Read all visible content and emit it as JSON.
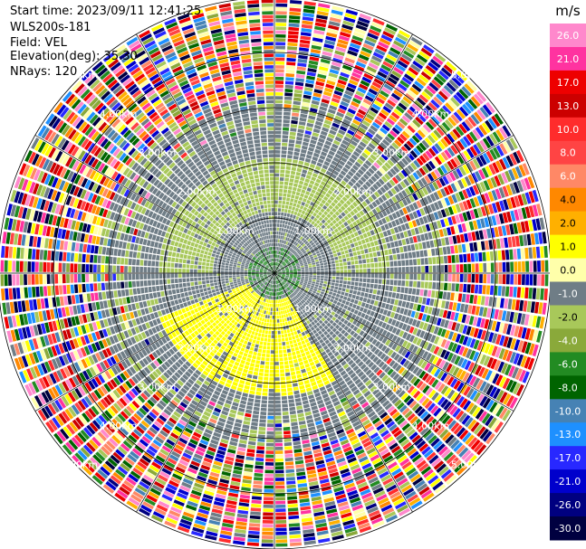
{
  "header": {
    "start_time": "Start time: 2023/09/11 12:41:25",
    "instrument": "WLS200s-181",
    "field": "Field: VEL",
    "elevation": "Elevation(deg): 35.30",
    "nrays": "NRays: 120"
  },
  "chart_data": {
    "type": "heatmap",
    "projection": "polar (PPI)",
    "field": "VEL",
    "n_rays": 120,
    "range_rings_km": [
      1.0,
      2.0,
      3.0,
      4.0,
      5.0
    ],
    "range_ring_labels": [
      "1.00km",
      "2.00km",
      "3.00km",
      "4.00km",
      "5.00km"
    ],
    "spokes_deg": [
      0,
      30,
      60,
      90,
      120,
      150,
      180,
      210,
      240,
      270,
      300,
      330
    ],
    "max_range_km": 5.0,
    "colorbar": {
      "unit": "m/s",
      "ticks": [
        "26.0",
        "21.0",
        "17.0",
        "13.0",
        "10.0",
        "8.0",
        "6.0",
        "4.0",
        "2.0",
        "1.0",
        "0.0",
        "-1.0",
        "-2.0",
        "-4.0",
        "-6.0",
        "-8.0",
        "-10.0",
        "-13.0",
        "-17.0",
        "-21.0",
        "-26.0",
        "-30.0"
      ],
      "colors": [
        "#ff88cc",
        "#ff33a0",
        "#ee0000",
        "#cc0000",
        "#ff2c2c",
        "#ff4444",
        "#ff8866",
        "#ff8800",
        "#ffb000",
        "#ffff00",
        "#ffffaa",
        "#6f7d86",
        "#a8c85a",
        "#8aa93a",
        "#228b22",
        "#006400",
        "#4682b4",
        "#1e90ff",
        "#2828ff",
        "#0000cc",
        "#000080",
        "#000040"
      ]
    },
    "regions": [
      {
        "description": "gray near-zero velocities",
        "range_km": [
          0.0,
          3.2
        ],
        "value": 0.0
      },
      {
        "description": "light-green negative band (north half)",
        "range_km": [
          1.1,
          2.1
        ],
        "azimuth_deg": [
          270,
          90
        ],
        "value": -1.5
      },
      {
        "description": "yellow positive band (south half)",
        "range_km": [
          0.3,
          2.2
        ],
        "azimuth_deg": [
          150,
          250
        ],
        "value": 1.5
      },
      {
        "description": "noisy multi-colour beyond",
        "range_km": [
          3.2,
          5.0
        ],
        "value": "random"
      }
    ]
  }
}
